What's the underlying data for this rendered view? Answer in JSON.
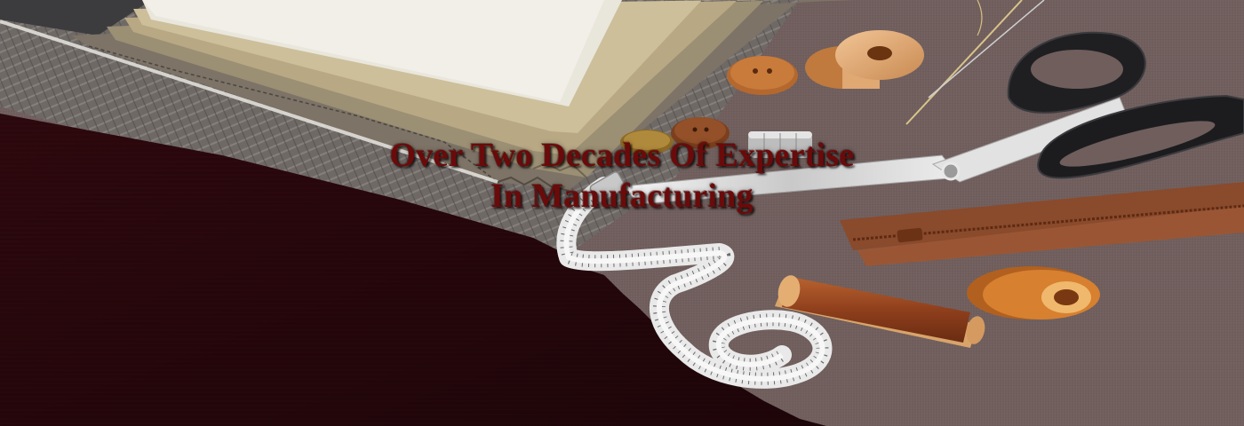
{
  "hero": {
    "headline_line_1": "Over Two Decades Of Expertise",
    "headline_line_2": "In Manufacturing"
  },
  "colors": {
    "headline_text": "#6b0a0a",
    "burgundy_fabric": "#2e0b10",
    "taupe_fabric": "#7a6866",
    "herringbone_fabric": "#6f6966",
    "thread_rust": "#9a4a24",
    "spool_wood": "#e6b07e",
    "zipper_brown": "#8a4a2c"
  }
}
